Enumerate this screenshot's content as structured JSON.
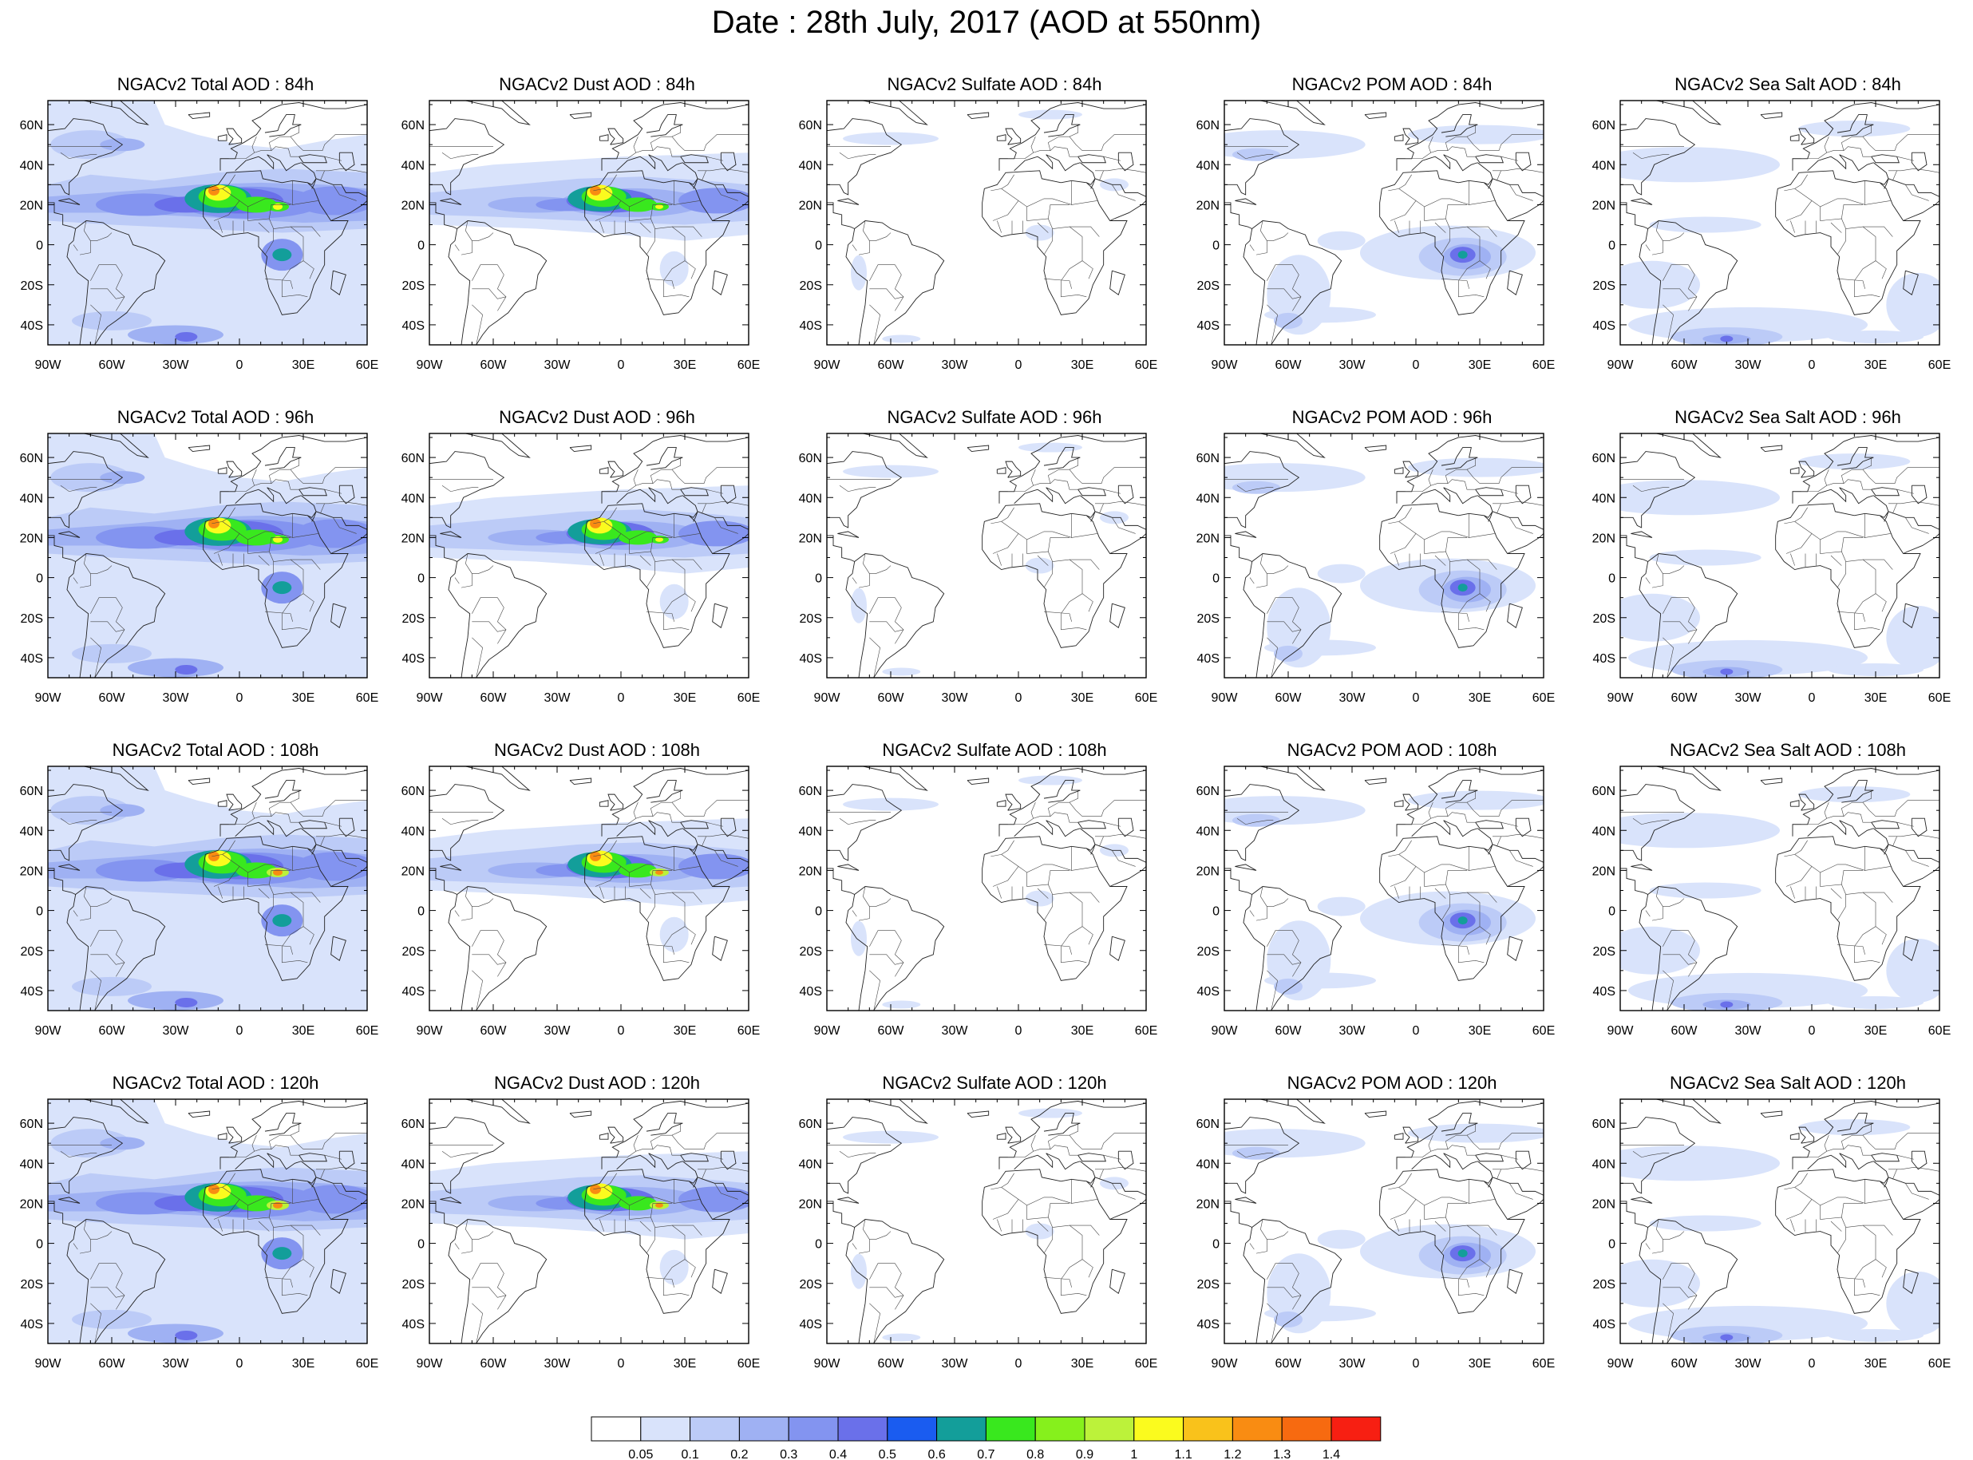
{
  "title": "Date : 28th July, 2017 (AOD at 550nm)",
  "lat_labels": [
    "60N",
    "40N",
    "20N",
    "0",
    "20S",
    "40S"
  ],
  "lon_labels": [
    "90W",
    "60W",
    "30W",
    "0",
    "30E",
    "60E"
  ],
  "map_extent": {
    "lon": [
      -90,
      60
    ],
    "lat": [
      -50,
      72
    ]
  },
  "panels": [
    [
      {
        "title": "NGACv2 Total AOD : 84h",
        "kind": "total"
      },
      {
        "title": "NGACv2 Dust AOD : 84h",
        "kind": "dust"
      },
      {
        "title": "NGACv2 Sulfate AOD : 84h",
        "kind": "sulfate"
      },
      {
        "title": "NGACv2 POM AOD : 84h",
        "kind": "pom"
      },
      {
        "title": "NGACv2 Sea Salt AOD : 84h",
        "kind": "seasalt"
      }
    ],
    [
      {
        "title": "NGACv2 Total AOD : 96h",
        "kind": "total"
      },
      {
        "title": "NGACv2 Dust AOD : 96h",
        "kind": "dust"
      },
      {
        "title": "NGACv2 Sulfate AOD : 96h",
        "kind": "sulfate"
      },
      {
        "title": "NGACv2 POM AOD : 96h",
        "kind": "pom"
      },
      {
        "title": "NGACv2 Sea Salt AOD : 96h",
        "kind": "seasalt"
      }
    ],
    [
      {
        "title": "NGACv2 Total AOD : 108h",
        "kind": "total"
      },
      {
        "title": "NGACv2 Dust AOD : 108h",
        "kind": "dust"
      },
      {
        "title": "NGACv2 Sulfate AOD : 108h",
        "kind": "sulfate"
      },
      {
        "title": "NGACv2 POM AOD : 108h",
        "kind": "pom"
      },
      {
        "title": "NGACv2 Sea Salt AOD : 108h",
        "kind": "seasalt"
      }
    ],
    [
      {
        "title": "NGACv2 Total AOD : 120h",
        "kind": "total"
      },
      {
        "title": "NGACv2 Dust AOD : 120h",
        "kind": "dust"
      },
      {
        "title": "NGACv2 Sulfate AOD : 120h",
        "kind": "sulfate"
      },
      {
        "title": "NGACv2 POM AOD : 120h",
        "kind": "pom"
      },
      {
        "title": "NGACv2 Sea Salt  AOD : 120h",
        "kind": "seasalt"
      }
    ]
  ],
  "colorbar": {
    "levels": [
      "0.05",
      "0.1",
      "0.2",
      "0.3",
      "0.4",
      "0.5",
      "0.6",
      "0.7",
      "0.8",
      "0.9",
      "1",
      "1.1",
      "1.2",
      "1.3",
      "1.4"
    ],
    "colors": [
      "#ffffff",
      "#d9e3fb",
      "#bccbf7",
      "#9fb1f3",
      "#8394f0",
      "#6a70ea",
      "#1a5cf0",
      "#139e9a",
      "#39e81e",
      "#86f01c",
      "#bcf23a",
      "#fbfb1e",
      "#f9c21b",
      "#f98c12",
      "#f76a10",
      "#f71f12"
    ]
  }
}
